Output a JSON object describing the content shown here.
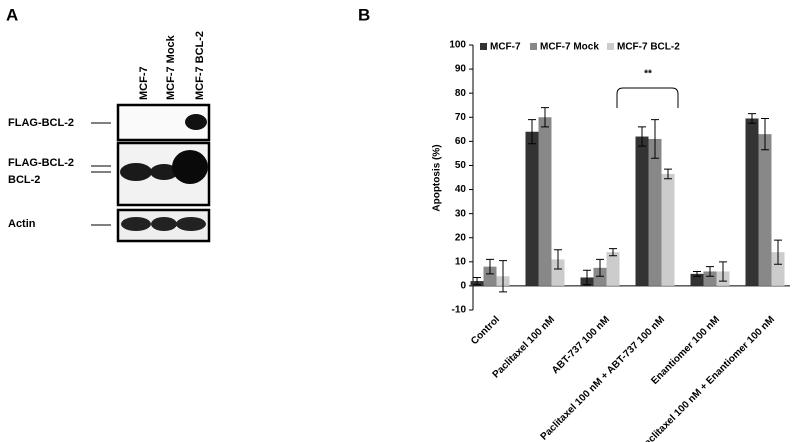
{
  "panel_a": {
    "label": "A",
    "lanes": [
      "MCF-7",
      "MCF-7 Mock",
      "MCF-7 BCL-2"
    ],
    "rows": [
      "FLAG-BCL-2",
      "FLAG-BCL-2",
      "BCL-2",
      "Actin"
    ]
  },
  "chart_data": {
    "type": "bar",
    "panel_label": "B",
    "y_label": "Apoptosis (%)",
    "annotation": "**",
    "categories": [
      "Control",
      "Paclitaxel 100 nM",
      "ABT-737 100 nM",
      "Paclitaxel 100 nM + ABT-737 100 nM",
      "Enantiomer 100 nM",
      "Paclitaxel 100 nM + Enantiomer 100 nM"
    ],
    "series": [
      {
        "name": "MCF-7",
        "color": "#333333",
        "values": [
          2,
          64,
          3.5,
          62,
          5,
          69.5
        ],
        "errors": [
          1.5,
          5,
          3,
          4,
          1,
          2
        ]
      },
      {
        "name": "MCF-7 Mock",
        "color": "#888888",
        "values": [
          8,
          70,
          7.5,
          61,
          6,
          63
        ],
        "errors": [
          3,
          4,
          3.5,
          8,
          2,
          6.5
        ]
      },
      {
        "name": "MCF-7 BCL-2",
        "color": "#cccccc",
        "values": [
          4,
          11,
          14,
          46.5,
          6,
          14
        ],
        "errors": [
          6.5,
          4,
          1.5,
          2,
          4,
          5
        ]
      }
    ],
    "ylim": [
      -10,
      100
    ],
    "yticks": [
      -10,
      0,
      10,
      20,
      30,
      40,
      50,
      60,
      70,
      80,
      90,
      100
    ],
    "grid": false,
    "legend": "top-left"
  }
}
